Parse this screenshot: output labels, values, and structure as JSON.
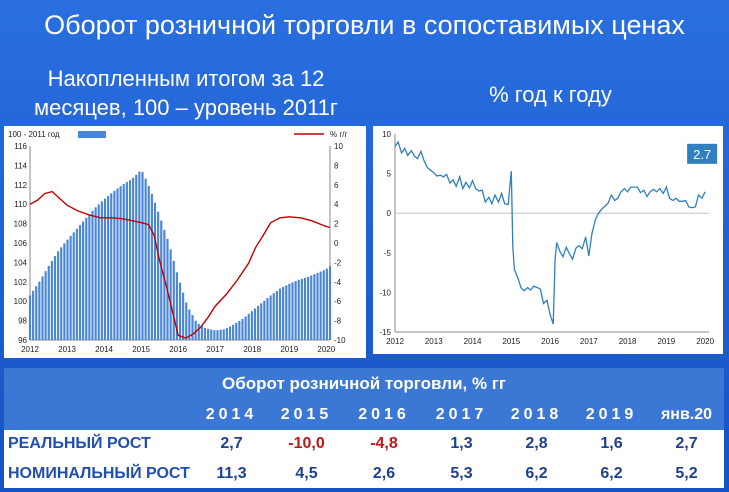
{
  "title": "Оборот розничной торговли в сопоставимых ценах",
  "left_subtitle_lines": [
    "Накопленным итогом за 12",
    "месяцев, 100 – уровень 2011г"
  ],
  "right_subtitle": "% год к году",
  "colors": {
    "bars": "#4a86d8",
    "red_line": "#c00000",
    "blue_line": "#2f7fc1",
    "accent": "#c0161a"
  },
  "chart_data": [
    {
      "type": "bar",
      "title": "",
      "legend": {
        "bar_label": "100 - 2011 год",
        "line_label": "% г/г",
        "placement": "top"
      },
      "x_ticks": [
        "2012",
        "2013",
        "2014",
        "2015",
        "2016",
        "2017",
        "2018",
        "2019",
        "2020"
      ],
      "x_range": [
        2012.0,
        2020.1
      ],
      "ylim_left": [
        96,
        116
      ],
      "y_ticks_left": [
        96,
        98,
        100,
        102,
        104,
        106,
        108,
        110,
        112,
        114,
        116
      ],
      "ylim_right": [
        -10,
        10
      ],
      "y_ticks_right": [
        -10,
        -8,
        -6,
        -4,
        -2,
        0,
        2,
        4,
        6,
        8,
        10
      ],
      "bar_points": [
        [
          2012.0,
          100.6
        ],
        [
          2012.25,
          102.0
        ],
        [
          2012.5,
          103.6
        ],
        [
          2012.75,
          105.1
        ],
        [
          2013.0,
          106.3
        ],
        [
          2013.25,
          107.4
        ],
        [
          2013.5,
          108.5
        ],
        [
          2013.75,
          109.6
        ],
        [
          2014.0,
          110.5
        ],
        [
          2014.25,
          111.3
        ],
        [
          2014.5,
          112.0
        ],
        [
          2014.75,
          112.6
        ],
        [
          2014.92,
          113.2
        ],
        [
          2015.0,
          113.6
        ],
        [
          2015.08,
          113.0
        ],
        [
          2015.25,
          111.5
        ],
        [
          2015.5,
          108.8
        ],
        [
          2015.75,
          106.0
        ],
        [
          2016.0,
          102.5
        ],
        [
          2016.25,
          99.5
        ],
        [
          2016.5,
          97.8
        ],
        [
          2016.75,
          97.2
        ],
        [
          2017.0,
          97.0
        ],
        [
          2017.25,
          97.1
        ],
        [
          2017.5,
          97.6
        ],
        [
          2017.75,
          98.2
        ],
        [
          2018.0,
          99.0
        ],
        [
          2018.25,
          99.8
        ],
        [
          2018.5,
          100.6
        ],
        [
          2018.75,
          101.3
        ],
        [
          2019.0,
          101.8
        ],
        [
          2019.25,
          102.2
        ],
        [
          2019.5,
          102.5
        ],
        [
          2019.75,
          102.9
        ],
        [
          2020.0,
          103.3
        ],
        [
          2020.08,
          103.6
        ]
      ],
      "line_points": [
        [
          2012.0,
          4.0
        ],
        [
          2012.2,
          4.4
        ],
        [
          2012.4,
          5.1
        ],
        [
          2012.6,
          5.3
        ],
        [
          2012.8,
          4.6
        ],
        [
          2013.0,
          3.9
        ],
        [
          2013.3,
          3.3
        ],
        [
          2013.6,
          2.9
        ],
        [
          2013.9,
          2.6
        ],
        [
          2014.2,
          2.6
        ],
        [
          2014.5,
          2.5
        ],
        [
          2014.75,
          2.3
        ],
        [
          2015.0,
          2.1
        ],
        [
          2015.2,
          1.9
        ],
        [
          2015.35,
          0.8
        ],
        [
          2015.5,
          -1.8
        ],
        [
          2015.7,
          -4.7
        ],
        [
          2015.9,
          -7.9
        ],
        [
          2016.0,
          -9.5
        ],
        [
          2016.2,
          -9.8
        ],
        [
          2016.4,
          -9.4
        ],
        [
          2016.6,
          -8.7
        ],
        [
          2016.8,
          -7.7
        ],
        [
          2017.0,
          -6.5
        ],
        [
          2017.3,
          -5.3
        ],
        [
          2017.6,
          -3.8
        ],
        [
          2017.9,
          -2.1
        ],
        [
          2018.1,
          -0.4
        ],
        [
          2018.3,
          0.8
        ],
        [
          2018.5,
          2.1
        ],
        [
          2018.75,
          2.6
        ],
        [
          2019.0,
          2.7
        ],
        [
          2019.3,
          2.6
        ],
        [
          2019.6,
          2.3
        ],
        [
          2019.8,
          2.0
        ],
        [
          2020.0,
          1.7
        ],
        [
          2020.1,
          1.6
        ]
      ]
    },
    {
      "type": "line",
      "title": "",
      "x_ticks": [
        "2012",
        "2013",
        "2014",
        "2015",
        "2016",
        "2017",
        "2018",
        "2019",
        "2020"
      ],
      "x_range": [
        2012.0,
        2020.1
      ],
      "ylim": [
        -15,
        10
      ],
      "y_ticks": [
        -15,
        -10,
        -5,
        0,
        5,
        10
      ],
      "last_value_label": "2.7",
      "points": [
        [
          2012.0,
          8.4
        ],
        [
          2012.08,
          9.0
        ],
        [
          2012.17,
          7.6
        ],
        [
          2012.25,
          8.2
        ],
        [
          2012.33,
          7.3
        ],
        [
          2012.42,
          7.9
        ],
        [
          2012.5,
          7.2
        ],
        [
          2012.58,
          6.9
        ],
        [
          2012.67,
          7.8
        ],
        [
          2012.75,
          6.6
        ],
        [
          2012.83,
          5.8
        ],
        [
          2012.92,
          5.4
        ],
        [
          2013.0,
          5.1
        ],
        [
          2013.08,
          4.7
        ],
        [
          2013.17,
          4.8
        ],
        [
          2013.25,
          4.6
        ],
        [
          2013.33,
          4.9
        ],
        [
          2013.42,
          3.8
        ],
        [
          2013.5,
          4.2
        ],
        [
          2013.58,
          3.4
        ],
        [
          2013.67,
          4.6
        ],
        [
          2013.75,
          3.1
        ],
        [
          2013.83,
          3.9
        ],
        [
          2013.92,
          3.2
        ],
        [
          2014.0,
          4.1
        ],
        [
          2014.08,
          3.1
        ],
        [
          2014.17,
          2.8
        ],
        [
          2014.25,
          2.9
        ],
        [
          2014.33,
          1.4
        ],
        [
          2014.42,
          2.0
        ],
        [
          2014.5,
          1.2
        ],
        [
          2014.58,
          2.3
        ],
        [
          2014.67,
          1.4
        ],
        [
          2014.75,
          2.5
        ],
        [
          2014.83,
          1.2
        ],
        [
          2014.92,
          1.1
        ],
        [
          2015.0,
          5.3
        ],
        [
          2015.04,
          -4.2
        ],
        [
          2015.08,
          -7.1
        ],
        [
          2015.17,
          -8.2
        ],
        [
          2015.25,
          -9.4
        ],
        [
          2015.33,
          -9.8
        ],
        [
          2015.42,
          -9.4
        ],
        [
          2015.5,
          -9.7
        ],
        [
          2015.58,
          -9.2
        ],
        [
          2015.67,
          -9.4
        ],
        [
          2015.75,
          -9.6
        ],
        [
          2015.83,
          -11.4
        ],
        [
          2015.92,
          -11.0
        ],
        [
          2016.0,
          -12.8
        ],
        [
          2016.08,
          -14.0
        ],
        [
          2016.13,
          -5.8
        ],
        [
          2016.17,
          -3.7
        ],
        [
          2016.25,
          -4.8
        ],
        [
          2016.33,
          -5.5
        ],
        [
          2016.42,
          -4.3
        ],
        [
          2016.5,
          -5.1
        ],
        [
          2016.58,
          -5.8
        ],
        [
          2016.67,
          -4.4
        ],
        [
          2016.75,
          -4.1
        ],
        [
          2016.83,
          -4.5
        ],
        [
          2016.92,
          -3.0
        ],
        [
          2017.0,
          -5.4
        ],
        [
          2017.08,
          -2.6
        ],
        [
          2017.17,
          -0.8
        ],
        [
          2017.25,
          0.0
        ],
        [
          2017.33,
          0.5
        ],
        [
          2017.42,
          0.9
        ],
        [
          2017.5,
          1.3
        ],
        [
          2017.58,
          2.3
        ],
        [
          2017.67,
          1.6
        ],
        [
          2017.75,
          1.9
        ],
        [
          2017.83,
          2.7
        ],
        [
          2017.92,
          3.1
        ],
        [
          2018.0,
          2.7
        ],
        [
          2018.08,
          3.3
        ],
        [
          2018.17,
          3.3
        ],
        [
          2018.25,
          3.3
        ],
        [
          2018.33,
          2.6
        ],
        [
          2018.42,
          2.9
        ],
        [
          2018.5,
          2.1
        ],
        [
          2018.58,
          2.7
        ],
        [
          2018.67,
          3.0
        ],
        [
          2018.75,
          2.7
        ],
        [
          2018.83,
          3.1
        ],
        [
          2018.92,
          2.5
        ],
        [
          2019.0,
          3.3
        ],
        [
          2019.08,
          1.9
        ],
        [
          2019.17,
          1.6
        ],
        [
          2019.25,
          1.9
        ],
        [
          2019.33,
          1.5
        ],
        [
          2019.42,
          1.5
        ],
        [
          2019.5,
          1.6
        ],
        [
          2019.58,
          0.8
        ],
        [
          2019.67,
          0.7
        ],
        [
          2019.75,
          0.8
        ],
        [
          2019.83,
          2.3
        ],
        [
          2019.92,
          1.9
        ],
        [
          2020.0,
          2.7
        ]
      ]
    },
    {
      "type": "table",
      "title": "Оборот розничной торговли, % гг",
      "columns": [
        "2014",
        "2015",
        "2016",
        "2017",
        "2018",
        "2019",
        "янв.20"
      ],
      "rows": [
        {
          "label": "РЕАЛЬНЫЙ РОСТ",
          "values": [
            "2,7",
            "-10,0",
            "-4,8",
            "1,3",
            "2,8",
            "1,6",
            "2,7"
          ]
        },
        {
          "label": "НОМИНАЛЬНЫЙ РОСТ",
          "values": [
            "11,3",
            "4,5",
            "2,6",
            "5,3",
            "6,2",
            "6,2",
            "5,2"
          ]
        }
      ]
    }
  ]
}
